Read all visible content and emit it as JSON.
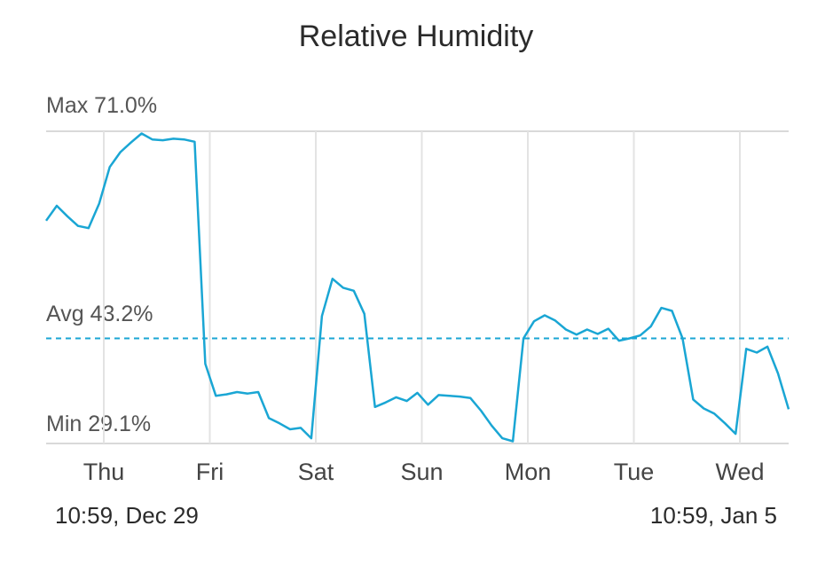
{
  "chart_data": {
    "type": "line",
    "title": "Relative Humidity",
    "ylim": [
      29.1,
      71.0
    ],
    "stats": {
      "max": "Max 71.0%",
      "avg": "Avg 43.2%",
      "min": "Min 29.1%"
    },
    "avg_value": 43.2,
    "x_ticks": [
      "Thu",
      "Fri",
      "Sat",
      "Sun",
      "Mon",
      "Tue",
      "Wed"
    ],
    "range_start": "10:59,  Dec 29",
    "range_end": "10:59,  Jan 5",
    "grid": true,
    "series": [
      {
        "color": "#1aa6d4",
        "x": [
          0.0,
          0.1,
          0.2,
          0.3,
          0.4,
          0.5,
          0.6,
          0.7,
          0.8,
          0.9,
          1.0,
          1.1,
          1.2,
          1.3,
          1.4,
          1.5,
          1.6,
          1.7,
          1.8,
          1.9,
          2.0,
          2.1,
          2.2,
          2.3,
          2.4,
          2.5,
          2.6,
          2.7,
          2.8,
          2.9,
          3.0,
          3.1,
          3.2,
          3.3,
          3.4,
          3.5,
          3.6,
          3.7,
          3.8,
          3.9,
          4.0,
          4.1,
          4.2,
          4.3,
          4.4,
          4.5,
          4.6,
          4.7,
          4.8,
          4.9,
          5.0,
          5.1,
          5.2,
          5.3,
          5.4,
          5.5,
          5.6,
          5.7,
          5.8,
          5.9,
          6.0,
          6.1,
          6.2,
          6.3,
          6.4,
          6.5,
          6.6,
          6.7,
          6.8,
          6.9,
          7.0
        ],
        "y": [
          59.0,
          61.0,
          59.6,
          58.3,
          58.0,
          61.3,
          66.2,
          68.2,
          69.5,
          70.7,
          69.9,
          69.8,
          70.0,
          69.9,
          69.6,
          39.8,
          35.5,
          35.7,
          36.0,
          35.8,
          36.0,
          32.5,
          31.8,
          31.0,
          31.2,
          29.8,
          46.2,
          51.2,
          50.0,
          49.6,
          46.5,
          34.0,
          34.6,
          35.3,
          34.8,
          35.9,
          34.3,
          35.6,
          35.5,
          35.4,
          35.2,
          33.5,
          31.5,
          29.8,
          29.4,
          43.2,
          45.5,
          46.3,
          45.6,
          44.4,
          43.7,
          44.4,
          43.8,
          44.5,
          42.9,
          43.2,
          43.6,
          44.8,
          47.3,
          46.9,
          43.2,
          35.0,
          33.8,
          33.1,
          31.8,
          30.4,
          41.8,
          41.3,
          42.1,
          38.5,
          33.7
        ]
      }
    ]
  }
}
